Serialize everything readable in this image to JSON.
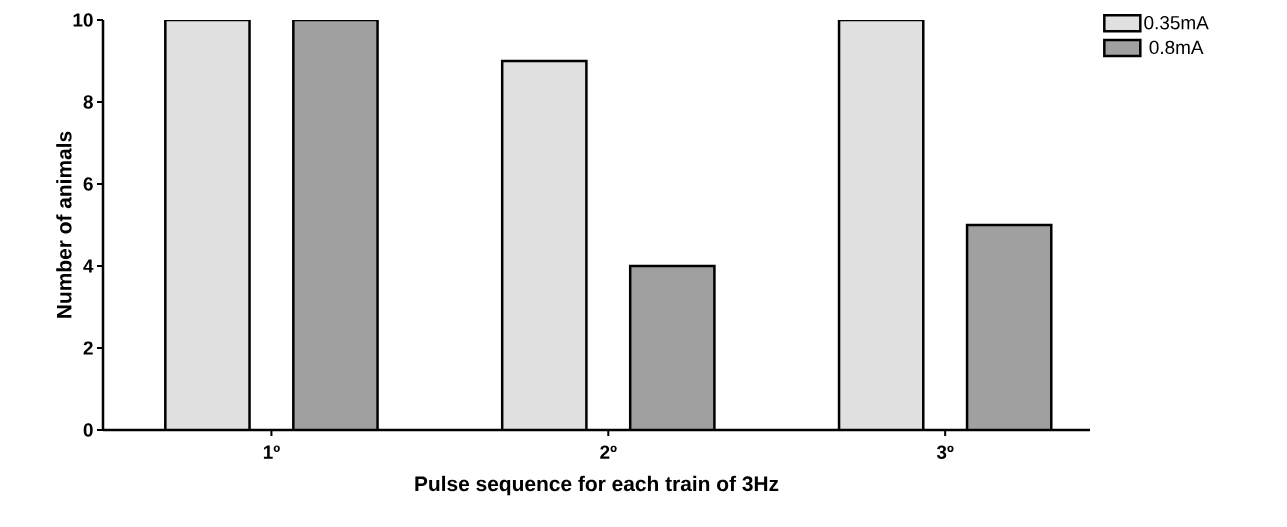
{
  "chart_data": {
    "type": "bar",
    "xlabel": "Pulse sequence for each train of 3Hz",
    "ylabel": "Number of animals",
    "categories": [
      "1º",
      "2º",
      "3º"
    ],
    "series": [
      {
        "name": "0.35mA",
        "color": "#e0e0e0",
        "values": [
          10,
          9,
          10
        ]
      },
      {
        "name": "0.8mA",
        "color": "#a0a0a0",
        "values": [
          10,
          4,
          5
        ]
      }
    ],
    "ylim": [
      0,
      10
    ],
    "yticks": [
      0,
      2,
      4,
      6,
      8,
      10
    ],
    "grid": false,
    "legend": "top right"
  }
}
